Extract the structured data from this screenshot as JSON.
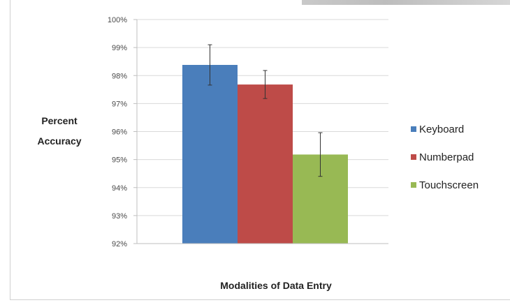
{
  "chart_data": {
    "type": "bar",
    "title": "",
    "ylabel_lines": [
      "Percent",
      "Accuracy"
    ],
    "xlabel": "Modalities of Data Entry",
    "ylim": [
      0.92,
      1.0
    ],
    "y_ticks": [
      {
        "value": 1.0,
        "label": "100%"
      },
      {
        "value": 0.99,
        "label": "99%"
      },
      {
        "value": 0.98,
        "label": "98%"
      },
      {
        "value": 0.97,
        "label": "97%"
      },
      {
        "value": 0.96,
        "label": "96%"
      },
      {
        "value": 0.95,
        "label": "95%"
      },
      {
        "value": 0.94,
        "label": "94%"
      },
      {
        "value": 0.93,
        "label": "93%"
      },
      {
        "value": 0.92,
        "label": "92%"
      }
    ],
    "grid": true,
    "legend_position": "right",
    "series": [
      {
        "name": "Keyboard",
        "value": 0.9838,
        "error": 0.0072,
        "color": "#4a7ebb"
      },
      {
        "name": "Numberpad",
        "value": 0.9768,
        "error": 0.005,
        "color": "#be4b48"
      },
      {
        "name": "Touchscreen",
        "value": 0.9518,
        "error": 0.0078,
        "color": "#98b954"
      }
    ]
  }
}
